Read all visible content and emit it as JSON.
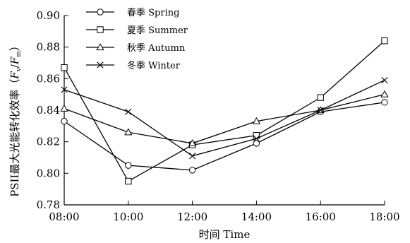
{
  "chart_data": {
    "type": "line",
    "title": "",
    "xlabel": "时间 Time",
    "ylabel_main": "PSII最大光能转化效率（",
    "ylabel_fv": "F",
    "ylabel_fv_sub": "v",
    "ylabel_slash": "/",
    "ylabel_fm": "F",
    "ylabel_fm_sub": "m",
    "ylabel_close": "）",
    "categories": [
      "08:00",
      "10:00",
      "12:00",
      "14:00",
      "16:00",
      "18:00"
    ],
    "y_ticks": [
      "0.78",
      "0.80",
      "0.82",
      "0.84",
      "0.86",
      "0.88",
      "0.90"
    ],
    "ylim": [
      0.78,
      0.9
    ],
    "grid": false,
    "legend_position": "top-left",
    "series": [
      {
        "name": "春季 Spring",
        "marker": "circle",
        "values": [
          0.833,
          0.805,
          0.802,
          0.819,
          0.839,
          0.845
        ]
      },
      {
        "name": "夏季 Summer",
        "marker": "square",
        "values": [
          0.867,
          0.795,
          0.818,
          0.824,
          0.848,
          0.884
        ]
      },
      {
        "name": "秋季 Autumn",
        "marker": "triangle",
        "values": [
          0.841,
          0.826,
          0.819,
          0.833,
          0.84,
          0.85
        ]
      },
      {
        "name": "冬季 Winter",
        "marker": "x",
        "values": [
          0.853,
          0.839,
          0.811,
          0.822,
          0.84,
          0.859
        ]
      }
    ]
  }
}
